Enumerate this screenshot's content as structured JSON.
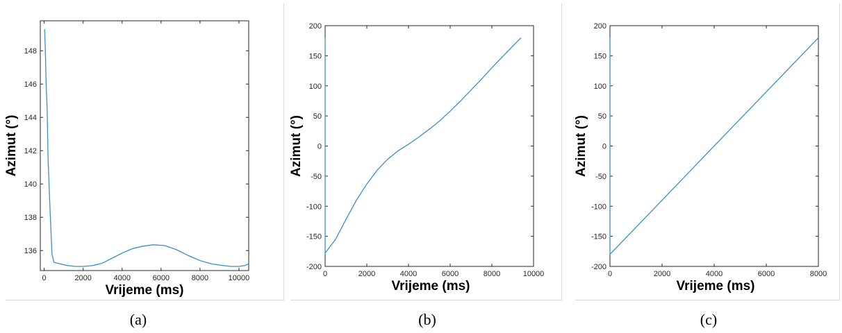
{
  "figure": {
    "line_color": "#3a8fc9",
    "panels": [
      {
        "caption": "(a)"
      },
      {
        "caption": "(b)"
      },
      {
        "caption": "(c)"
      }
    ]
  },
  "chart_data": [
    {
      "type": "line",
      "xlabel": "Vrijeme (ms)",
      "ylabel": "Azimut (°)",
      "xlim": [
        -200,
        10500
      ],
      "ylim": [
        134.8,
        149.8
      ],
      "xticks": [
        0,
        2000,
        4000,
        6000,
        8000,
        10000
      ],
      "yticks": [
        136,
        138,
        140,
        142,
        144,
        146,
        148
      ],
      "series": [
        {
          "x": [
            20,
            60,
            100,
            150,
            200,
            300,
            400,
            500,
            800,
            1200,
            1600,
            2000,
            2500,
            3000,
            3500,
            4000,
            4500,
            5000,
            5600,
            6200,
            6800,
            7400,
            8000,
            8600,
            9200,
            9600,
            10000,
            10300,
            10500
          ],
          "y": [
            149.3,
            148.0,
            146.0,
            144.6,
            141.5,
            138.5,
            135.8,
            135.3,
            135.2,
            135.1,
            135.05,
            135.05,
            135.1,
            135.25,
            135.55,
            135.85,
            136.1,
            136.25,
            136.35,
            136.3,
            136.05,
            135.7,
            135.4,
            135.2,
            135.1,
            135.05,
            135.05,
            135.1,
            135.2
          ]
        }
      ]
    },
    {
      "type": "line",
      "xlabel": "Vrijeme (ms)",
      "ylabel": "Azimut (°)",
      "xlim": [
        0,
        10000
      ],
      "ylim": [
        -200,
        200
      ],
      "xticks": [
        0,
        2000,
        4000,
        6000,
        8000,
        10000
      ],
      "yticks": [
        -200,
        -150,
        -100,
        -50,
        0,
        50,
        100,
        150,
        200
      ],
      "series": [
        {
          "x": [
            0,
            0,
            0,
            500,
            1000,
            1500,
            2000,
            2500,
            3000,
            3500,
            4000,
            4500,
            5000,
            5500,
            6000,
            6500,
            7000,
            7500,
            8000,
            8500,
            9000,
            9400
          ],
          "y": [
            180,
            -180,
            -178,
            -155,
            -122,
            -90,
            -63,
            -40,
            -22,
            -8,
            3,
            15,
            28,
            42,
            58,
            75,
            93,
            111,
            130,
            148,
            166,
            180
          ]
        }
      ]
    },
    {
      "type": "line",
      "xlabel": "Vrijeme (ms)",
      "ylabel": "Azimut (°)",
      "xlim": [
        0,
        8000
      ],
      "ylim": [
        -200,
        200
      ],
      "xticks": [
        0,
        2000,
        4000,
        6000,
        8000
      ],
      "yticks": [
        -200,
        -150,
        -100,
        -50,
        0,
        50,
        100,
        150,
        200
      ],
      "series": [
        {
          "x": [
            0,
            0,
            0,
            8000
          ],
          "y": [
            180,
            -180,
            -180,
            180
          ]
        }
      ]
    }
  ]
}
